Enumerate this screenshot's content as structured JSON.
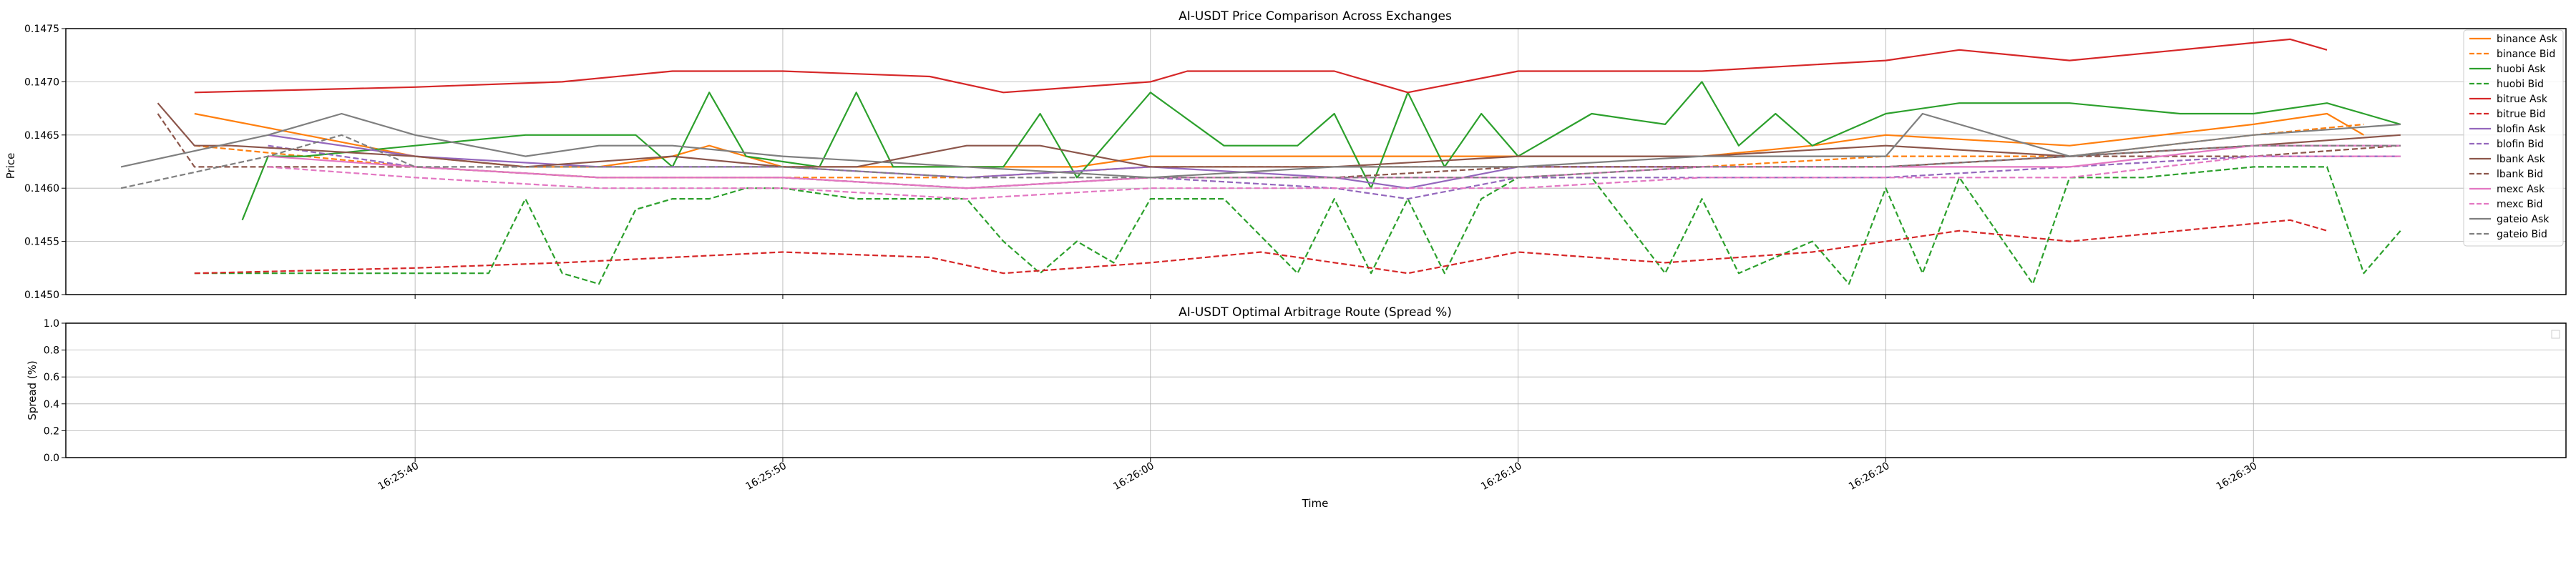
{
  "chart_data": [
    {
      "type": "line",
      "title": "AI-USDT Price Comparison Across Exchanges",
      "xlabel": "",
      "ylabel": "Price",
      "ylim": [
        0.145,
        0.1475
      ],
      "yticks": [
        "0.1450",
        "0.1455",
        "0.1460",
        "0.1465",
        "0.1470",
        "0.1475"
      ],
      "xlim": [
        "16:25:30.5",
        "16:26:38.5"
      ],
      "grid": true,
      "legend": "right",
      "series": [
        {
          "name": "binance Ask",
          "color": "#ff7f0e",
          "dash": "solid",
          "x": [
            "16:25:34",
            "16:25:37",
            "16:25:40",
            "16:25:43",
            "16:25:45",
            "16:25:47",
            "16:25:48",
            "16:25:50",
            "16:25:55",
            "16:25:58",
            "16:26:00",
            "16:26:05",
            "16:26:07",
            "16:26:10",
            "16:26:15",
            "16:26:18",
            "16:26:20",
            "16:26:25",
            "16:26:30",
            "16:26:32",
            "16:26:33"
          ],
          "y": [
            0.1467,
            0.1465,
            0.1463,
            0.1462,
            0.1462,
            0.1463,
            0.1464,
            0.1462,
            0.1462,
            0.1462,
            0.1463,
            0.1463,
            0.1463,
            0.1463,
            0.1463,
            0.1464,
            0.1465,
            0.1464,
            0.1466,
            0.1467,
            0.1465
          ]
        },
        {
          "name": "binance Bid",
          "color": "#ff7f0e",
          "dash": "dashed",
          "x": [
            "16:25:34",
            "16:25:40",
            "16:25:45",
            "16:25:50",
            "16:25:55",
            "16:26:00",
            "16:26:05",
            "16:26:10",
            "16:26:15",
            "16:26:20",
            "16:26:25",
            "16:26:30",
            "16:26:33"
          ],
          "y": [
            0.1464,
            0.1462,
            0.1461,
            0.1461,
            0.1461,
            0.1462,
            0.1462,
            0.1462,
            0.1462,
            0.1463,
            0.1463,
            0.1465,
            0.1466
          ]
        },
        {
          "name": "huobi Ask",
          "color": "#2ca02c",
          "dash": "solid",
          "x": [
            "16:25:35.3",
            "16:25:36",
            "16:25:37",
            "16:25:40",
            "16:25:43",
            "16:25:46",
            "16:25:47",
            "16:25:48",
            "16:25:49",
            "16:25:51",
            "16:25:52",
            "16:25:53",
            "16:25:54",
            "16:25:56",
            "16:25:57",
            "16:25:58",
            "16:25:59",
            "16:26:00",
            "16:26:02",
            "16:26:04",
            "16:26:05",
            "16:26:06",
            "16:26:07",
            "16:26:08",
            "16:26:09",
            "16:26:10",
            "16:26:12",
            "16:26:14",
            "16:26:15",
            "16:26:16",
            "16:26:17",
            "16:26:18",
            "16:26:20",
            "16:26:22",
            "16:26:25",
            "16:26:28",
            "16:26:30",
            "16:26:32",
            "16:26:33",
            "16:26:34"
          ],
          "y": [
            0.1457,
            0.1463,
            0.1463,
            0.1464,
            0.1465,
            0.1465,
            0.1462,
            0.1469,
            0.1463,
            0.1462,
            0.1469,
            0.1462,
            0.1462,
            0.1462,
            0.1467,
            0.1461,
            0.1465,
            0.1469,
            0.1464,
            0.1464,
            0.1467,
            0.146,
            0.1469,
            0.1462,
            0.1467,
            0.1463,
            0.1467,
            0.1466,
            0.147,
            0.1464,
            0.1467,
            0.1464,
            0.1467,
            0.1468,
            0.1468,
            0.1467,
            0.1467,
            0.1468,
            0.1467,
            0.1466
          ]
        },
        {
          "name": "huobi Bid",
          "color": "#2ca02c",
          "dash": "dashed",
          "x": [
            "16:25:34",
            "16:25:37",
            "16:25:42",
            "16:25:43",
            "16:25:44",
            "16:25:45",
            "16:25:46",
            "16:25:47",
            "16:25:48",
            "16:25:49",
            "16:25:50",
            "16:25:52",
            "16:25:55",
            "16:25:56",
            "16:25:57",
            "16:25:58",
            "16:25:59",
            "16:26:00",
            "16:26:02",
            "16:26:04",
            "16:26:05",
            "16:26:06",
            "16:26:07",
            "16:26:08",
            "16:26:09",
            "16:26:10",
            "16:26:12",
            "16:26:14",
            "16:26:15",
            "16:26:16",
            "16:26:18",
            "16:26:19",
            "16:26:20",
            "16:26:21",
            "16:26:22",
            "16:26:24",
            "16:26:25",
            "16:26:27",
            "16:26:30",
            "16:26:32",
            "16:26:33",
            "16:26:34"
          ],
          "y": [
            0.1452,
            0.1452,
            0.1452,
            0.1459,
            0.1452,
            0.1451,
            0.1458,
            0.1459,
            0.1459,
            0.146,
            0.146,
            0.1459,
            0.1459,
            0.1455,
            0.1452,
            0.1455,
            0.1453,
            0.1459,
            0.1459,
            0.1452,
            0.1459,
            0.1452,
            0.1459,
            0.1452,
            0.1459,
            0.1461,
            0.1461,
            0.1452,
            0.1459,
            0.1452,
            0.1455,
            0.1451,
            0.146,
            0.1452,
            0.1461,
            0.1451,
            0.1461,
            0.1461,
            0.1462,
            0.1462,
            0.1452,
            0.1456
          ]
        },
        {
          "name": "bitrue Ask",
          "color": "#d62728",
          "dash": "solid",
          "x": [
            "16:25:34",
            "16:25:40",
            "16:25:44",
            "16:25:47",
            "16:25:50",
            "16:25:54",
            "16:25:56",
            "16:26:00",
            "16:26:01",
            "16:26:05",
            "16:26:07",
            "16:26:10",
            "16:26:15",
            "16:26:20",
            "16:26:22",
            "16:26:25",
            "16:26:28",
            "16:26:31",
            "16:26:32"
          ],
          "y": [
            0.1469,
            0.14695,
            0.147,
            0.1471,
            0.1471,
            0.14705,
            0.1469,
            0.147,
            0.1471,
            0.1471,
            0.1469,
            0.1471,
            0.1471,
            0.1472,
            0.1473,
            0.1472,
            0.1473,
            0.1474,
            0.1473
          ]
        },
        {
          "name": "bitrue Bid",
          "color": "#d62728",
          "dash": "dashed",
          "x": [
            "16:25:34",
            "16:25:40",
            "16:25:44",
            "16:25:50",
            "16:25:54",
            "16:25:56",
            "16:26:00",
            "16:26:03",
            "16:26:07",
            "16:26:10",
            "16:26:14",
            "16:26:18",
            "16:26:22",
            "16:26:25",
            "16:26:28",
            "16:26:31",
            "16:26:32"
          ],
          "y": [
            0.1452,
            0.14525,
            0.1453,
            0.1454,
            0.14535,
            0.1452,
            0.1453,
            0.1454,
            0.1452,
            0.1454,
            0.1453,
            0.1454,
            0.1456,
            0.1455,
            0.1456,
            0.1457,
            0.1456
          ]
        },
        {
          "name": "blofin Ask",
          "color": "#9467bd",
          "dash": "solid",
          "x": [
            "16:25:36",
            "16:25:40",
            "16:25:45",
            "16:25:50",
            "16:25:55",
            "16:26:00",
            "16:26:05",
            "16:26:07",
            "16:26:10",
            "16:26:15",
            "16:26:20",
            "16:26:25",
            "16:26:30",
            "16:26:34"
          ],
          "y": [
            0.1465,
            0.1463,
            0.1462,
            0.1462,
            0.1461,
            0.1462,
            0.1461,
            0.146,
            0.1462,
            0.1462,
            0.1462,
            0.1463,
            0.1464,
            0.1464
          ]
        },
        {
          "name": "blofin Bid",
          "color": "#9467bd",
          "dash": "dashed",
          "x": [
            "16:25:36",
            "16:25:40",
            "16:25:45",
            "16:25:50",
            "16:25:55",
            "16:26:00",
            "16:26:05",
            "16:26:07",
            "16:26:10",
            "16:26:15",
            "16:26:20",
            "16:26:25",
            "16:26:30",
            "16:26:34"
          ],
          "y": [
            0.1464,
            0.1462,
            0.1461,
            0.1461,
            0.146,
            0.1461,
            0.146,
            0.1459,
            0.1461,
            0.1461,
            0.1461,
            0.1462,
            0.1463,
            0.1463
          ]
        },
        {
          "name": "lbank Ask",
          "color": "#8c564b",
          "dash": "solid",
          "x": [
            "16:25:33",
            "16:25:34",
            "16:25:35",
            "16:25:40",
            "16:25:43",
            "16:25:47",
            "16:25:50",
            "16:25:52",
            "16:25:55",
            "16:25:57",
            "16:26:00",
            "16:26:05",
            "16:26:10",
            "16:26:15",
            "16:26:20",
            "16:26:25",
            "16:26:30",
            "16:26:34"
          ],
          "y": [
            0.1468,
            0.1464,
            0.1464,
            0.1463,
            0.1462,
            0.1463,
            0.1462,
            0.1462,
            0.1464,
            0.1464,
            0.1462,
            0.1462,
            0.1463,
            0.1463,
            0.1464,
            0.1463,
            0.1464,
            0.1465
          ]
        },
        {
          "name": "lbank Bid",
          "color": "#8c564b",
          "dash": "dashed",
          "x": [
            "16:25:33",
            "16:25:34",
            "16:25:35",
            "16:25:40",
            "16:25:45",
            "16:25:50",
            "16:25:55",
            "16:26:00",
            "16:26:05",
            "16:26:10",
            "16:26:15",
            "16:26:20",
            "16:26:25",
            "16:26:30",
            "16:26:34"
          ],
          "y": [
            0.1467,
            0.1462,
            0.1462,
            0.1462,
            0.1461,
            0.1461,
            0.146,
            0.1461,
            0.1461,
            0.1462,
            0.1462,
            0.1462,
            0.1463,
            0.1463,
            0.1464
          ]
        },
        {
          "name": "mexc Ask",
          "color": "#e377c2",
          "dash": "solid",
          "x": [
            "16:25:36",
            "16:25:40",
            "16:25:45",
            "16:25:50",
            "16:25:55",
            "16:26:00",
            "16:26:05",
            "16:26:10",
            "16:26:15",
            "16:26:20",
            "16:26:25",
            "16:26:30",
            "16:26:34"
          ],
          "y": [
            0.1463,
            0.1462,
            0.1461,
            0.1461,
            0.146,
            0.1461,
            0.1461,
            0.1461,
            0.1462,
            0.1462,
            0.1462,
            0.1464,
            0.1464
          ]
        },
        {
          "name": "mexc Bid",
          "color": "#e377c2",
          "dash": "dashed",
          "x": [
            "16:25:36",
            "16:25:40",
            "16:25:45",
            "16:25:50",
            "16:25:55",
            "16:26:00",
            "16:26:05",
            "16:26:10",
            "16:26:15",
            "16:26:20",
            "16:26:25",
            "16:26:30",
            "16:26:34"
          ],
          "y": [
            0.1462,
            0.1461,
            0.146,
            0.146,
            0.1459,
            0.146,
            0.146,
            0.146,
            0.1461,
            0.1461,
            0.1461,
            0.1463,
            0.1463
          ]
        },
        {
          "name": "gateio Ask",
          "color": "#7f7f7f",
          "dash": "solid",
          "x": [
            "16:25:32",
            "16:25:36",
            "16:25:38",
            "16:25:40",
            "16:25:43",
            "16:25:45",
            "16:25:47",
            "16:25:50",
            "16:25:55",
            "16:26:00",
            "16:26:05",
            "16:26:10",
            "16:26:15",
            "16:26:20",
            "16:26:21",
            "16:26:25",
            "16:26:30",
            "16:26:34"
          ],
          "y": [
            0.1462,
            0.1465,
            0.1467,
            0.1465,
            0.1463,
            0.1464,
            0.1464,
            0.1463,
            0.1462,
            0.1461,
            0.1462,
            0.1462,
            0.1463,
            0.1463,
            0.1467,
            0.1463,
            0.1465,
            0.1466
          ]
        },
        {
          "name": "gateio Bid",
          "color": "#7f7f7f",
          "dash": "dashed",
          "x": [
            "16:25:32",
            "16:25:36",
            "16:25:38",
            "16:25:40",
            "16:25:45",
            "16:25:50",
            "16:25:55",
            "16:26:00",
            "16:26:05",
            "16:26:10",
            "16:26:15",
            "16:26:20",
            "16:26:25",
            "16:26:30",
            "16:26:34"
          ],
          "y": [
            0.146,
            0.1463,
            0.1465,
            0.1462,
            0.1462,
            0.1462,
            0.1461,
            0.1461,
            0.1461,
            0.1461,
            0.1462,
            0.1462,
            0.1463,
            0.1464,
            0.1464
          ]
        }
      ]
    },
    {
      "type": "line",
      "title": "AI-USDT Optimal Arbitrage Route (Spread %)",
      "xlabel": "Time",
      "ylabel": "Spread (%)",
      "ylim": [
        0.0,
        1.0
      ],
      "yticks": [
        "0.0",
        "0.2",
        "0.4",
        "0.6",
        "0.8",
        "1.0"
      ],
      "xticks": [
        "16:25:40",
        "16:25:50",
        "16:26:00",
        "16:26:10",
        "16:26:20",
        "16:26:30"
      ],
      "grid": true,
      "legend": "top-right",
      "series": []
    }
  ]
}
